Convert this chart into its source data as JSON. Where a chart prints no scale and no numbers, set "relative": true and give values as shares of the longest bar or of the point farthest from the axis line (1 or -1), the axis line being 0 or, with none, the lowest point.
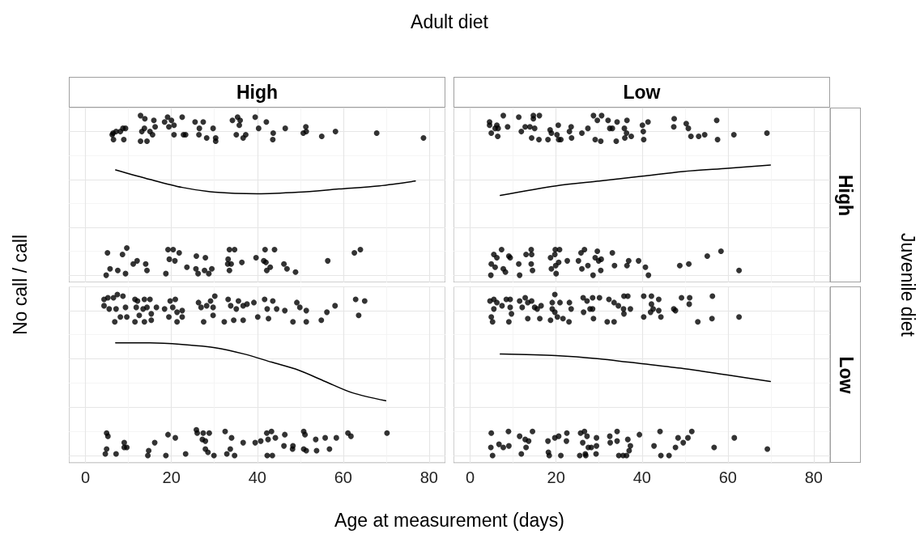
{
  "chart_data": [
    {
      "type": "scatter",
      "title": "High",
      "ylabel": "No call / call",
      "annotations": [
        "Adult diet",
        "Juvenile diet"
      ],
      "relative": true,
      "grid": true,
      "marker": "circle",
      "tick_labels": false,
      "xlim": [
        -3.9,
        83.8
      ],
      "xticks": [
        0,
        20,
        40,
        60,
        80
      ],
      "series": [
        {
          "type": "scatter",
          "color": "#000000",
          "x": [
            6.2,
            6.5,
            7.1,
            8.1,
            8.7,
            9.3,
            8.9,
            6.4,
            12.8,
            13.8,
            15.9,
            18.4,
            19.1,
            20.0,
            20.6,
            19.4,
            13.1,
            13.7,
            15.0,
            16.2,
            15.6,
            14.3,
            12.8,
            20.6,
            22.8,
            23.3,
            22.5,
            25.5,
            27.4,
            26.5,
            26.4,
            28.2,
            29.7,
            30.3,
            30.3,
            34.2,
            35.4,
            36.0,
            35.8,
            35.1,
            36.7,
            37.3,
            39.5,
            40.3,
            42.1,
            43.7,
            43.6,
            46.5,
            51.3,
            50.7,
            51.4,
            55.0,
            58.2,
            67.8,
            78.7,
            5.1,
            5.7,
            4.8,
            7.5,
            8.6,
            9.6,
            9.3,
            11.1,
            12.0,
            14.0,
            14.3,
            18.7,
            19.2,
            20.4,
            21.8,
            19.5,
            20.8,
            23.6,
            25.7,
            25.8,
            26.2,
            27.9,
            27.7,
            28.7,
            29.4,
            33.2,
            33.5,
            34.7,
            33.1,
            33.9,
            33.5,
            36.4,
            39.7,
            41.8,
            44.0,
            41.5,
            42.0,
            43.0,
            42.2,
            46.2,
            46.9,
            48.9,
            56.4,
            62.6,
            64.0
          ],
          "values": [
            0.88,
            0.85,
            0.9,
            0.9,
            0.92,
            0.92,
            0.85,
            0.89,
            1.0,
            0.98,
            0.97,
            0.96,
            0.99,
            0.97,
            0.94,
            0.93,
            0.9,
            0.92,
            0.9,
            0.93,
            0.88,
            0.84,
            0.84,
            0.88,
            0.88,
            0.88,
            0.99,
            0.96,
            0.96,
            0.92,
            0.88,
            0.86,
            0.92,
            0.86,
            0.84,
            0.97,
            0.99,
            0.97,
            0.94,
            0.88,
            0.86,
            0.88,
            0.99,
            0.92,
            0.96,
            0.89,
            0.85,
            0.92,
            0.93,
            0.89,
            0.9,
            0.87,
            0.9,
            0.89,
            0.86,
            0.14,
            0.04,
            0.0,
            0.03,
            0.13,
            0.17,
            0.01,
            0.07,
            0.09,
            0.07,
            0.03,
            0.01,
            0.16,
            0.16,
            0.14,
            0.1,
            0.09,
            0.05,
            0.04,
            0.12,
            0.01,
            0.11,
            0.03,
            0.01,
            0.04,
            0.1,
            0.16,
            0.16,
            0.07,
            0.07,
            0.03,
            0.08,
            0.11,
            0.16,
            0.16,
            0.09,
            0.08,
            0.05,
            0.03,
            0.07,
            0.04,
            0.02,
            0.09,
            0.14,
            0.16
          ]
        },
        {
          "type": "line",
          "color": "#000000",
          "marker": "none",
          "x": [
            7.0,
            15.0,
            22.5,
            30.1,
            40.0,
            49.6,
            59.0,
            68.4,
            76.8
          ],
          "values": [
            0.66,
            0.6,
            0.55,
            0.52,
            0.51,
            0.52,
            0.54,
            0.56,
            0.59
          ]
        }
      ]
    },
    {
      "type": "scatter",
      "title": "Low",
      "y2label": "High",
      "relative": true,
      "grid": true,
      "marker": "circle",
      "tick_labels": false,
      "xlim": [
        -3.9,
        83.8
      ],
      "xticks": [
        0,
        20,
        40,
        60,
        80
      ],
      "series": [
        {
          "type": "scatter",
          "color": "#000000",
          "x": [
            4.5,
            4.5,
            4.9,
            6.4,
            6.2,
            6.5,
            5.8,
            7.7,
            8.7,
            11.3,
            11.9,
            12.8,
            13.9,
            14.7,
            14.7,
            16.1,
            15.0,
            14.3,
            16.0,
            18.1,
            18.6,
            18.9,
            20.5,
            20.2,
            20.6,
            21.1,
            23.5,
            23.1,
            23.6,
            26.0,
            27.4,
            28.7,
            30.6,
            29.6,
            32.1,
            29.1,
            30.4,
            32.5,
            33.1,
            34.2,
            34.0,
            36.5,
            35.9,
            36.0,
            37.5,
            36.4,
            40.1,
            40.3,
            41.4,
            40.4,
            47.5,
            47.4,
            50.3,
            50.8,
            51.4,
            53.2,
            54.6,
            57.4,
            57.6,
            61.4,
            69.1,
            5.5,
            6.2,
            7.3,
            4.9,
            5.8,
            7.7,
            8.2,
            9.0,
            9.3,
            4.8,
            11.3,
            11.5,
            13.0,
            14.2,
            14.3,
            14.2,
            14.5,
            18.7,
            19.8,
            20.8,
            19.7,
            20.6,
            19.9,
            18.9,
            20.0,
            22.6,
            25.2,
            25.8,
            26.6,
            27.4,
            26.0,
            28.6,
            29.6,
            29.1,
            29.9,
            30.5,
            30.4,
            33.1,
            33.6,
            36.5,
            36.9,
            39.2,
            40.8,
            41.5,
            48.8,
            50.9,
            55.2,
            58.4,
            62.6
          ],
          "values": [
            0.96,
            0.94,
            0.89,
            0.87,
            0.94,
            0.92,
            0.92,
            1.0,
            0.93,
            0.99,
            0.9,
            0.93,
            0.93,
            1.0,
            0.98,
            1.0,
            0.92,
            0.86,
            0.85,
            0.85,
            0.91,
            0.89,
            0.94,
            0.88,
            0.85,
            0.85,
            0.93,
            0.9,
            0.86,
            0.89,
            0.92,
            1.0,
            1.0,
            0.97,
            0.97,
            0.85,
            0.84,
            0.92,
            0.92,
            0.96,
            0.84,
            0.97,
            0.92,
            0.86,
            0.87,
            0.89,
            0.94,
            0.9,
            0.96,
            0.85,
            0.98,
            0.93,
            0.95,
            0.92,
            0.87,
            0.87,
            0.88,
            0.97,
            0.85,
            0.88,
            0.89,
            0.13,
            0.11,
            0.16,
            0.07,
            0.05,
            0.04,
            0.02,
            0.12,
            0.11,
            0.0,
            0.07,
            0.0,
            0.13,
            0.16,
            0.13,
            0.07,
            0.03,
            0.11,
            0.16,
            0.16,
            0.13,
            0.08,
            0.06,
            0.04,
            0.01,
            0.09,
            0.09,
            0.14,
            0.16,
            0.06,
            0.04,
            0.0,
            0.15,
            0.11,
            0.09,
            0.1,
            0.03,
            0.14,
            0.06,
            0.06,
            0.09,
            0.09,
            0.05,
            0.0,
            0.06,
            0.07,
            0.12,
            0.15,
            0.03
          ]
        },
        {
          "type": "line",
          "color": "#000000",
          "marker": "none",
          "x": [
            7.0,
            20.0,
            30.1,
            40.0,
            49.6,
            60.0,
            69.9
          ],
          "values": [
            0.5,
            0.56,
            0.59,
            0.62,
            0.65,
            0.67,
            0.69
          ]
        }
      ]
    },
    {
      "type": "scatter",
      "xlabel": "Age at measurement (days)",
      "relative": true,
      "grid": true,
      "marker": "circle",
      "tick_labels": "x",
      "xlim": [
        -3.9,
        83.8
      ],
      "xticks": [
        0,
        20,
        40,
        60,
        80
      ],
      "series": [
        {
          "type": "scatter",
          "color": "#000000",
          "x": [
            4.3,
            5.2,
            6.5,
            7.4,
            8.7,
            4.3,
            5.5,
            7.1,
            8.1,
            6.8,
            9.3,
            9.6,
            11.5,
            12.1,
            13.7,
            15.0,
            11.8,
            12.5,
            13.4,
            14.3,
            15.3,
            16.5,
            11.5,
            13.7,
            15.3,
            18.4,
            19.7,
            20.9,
            20.3,
            21.3,
            22.5,
            19.4,
            21.3,
            22.5,
            26.3,
            26.9,
            28.2,
            29.1,
            30.1,
            29.7,
            27.5,
            29.7,
            32.3,
            33.2,
            33.8,
            35.1,
            35.6,
            36.7,
            37.6,
            39.2,
            34.5,
            36.7,
            40.1,
            41.7,
            43.6,
            42.3,
            44.5,
            42.6,
            46.4,
            48.3,
            49.2,
            49.9,
            51.4,
            51.4,
            54.9,
            56.2,
            58.1,
            62.9,
            65.0,
            63.6,
            4.9,
            5.2,
            4.9,
            4.6,
            7.1,
            9.0,
            9.0,
            9.6,
            14.7,
            14.5,
            16.1,
            18.7,
            19.2,
            20.9,
            23.3,
            25.8,
            26.0,
            27.4,
            28.8,
            27.2,
            27.9,
            27.9,
            28.5,
            29.9,
            32.5,
            34.0,
            33.7,
            32.9,
            34.7,
            36.7,
            39.5,
            40.8,
            42.2,
            43.3,
            42.5,
            44.2,
            42.3,
            43.5,
            46.4,
            46.2,
            48.3,
            48.2,
            50.8,
            51.1,
            50.8,
            51.4,
            53.6,
            53.8,
            55.8,
            56.8,
            58.4,
            61.1,
            61.8,
            70.2
          ],
          "values": [
            0.97,
            0.98,
            0.98,
            1.0,
            0.99,
            0.93,
            0.91,
            0.91,
            0.86,
            0.83,
            0.92,
            0.86,
            0.97,
            0.96,
            0.97,
            0.97,
            0.92,
            0.87,
            0.91,
            0.92,
            0.88,
            0.92,
            0.83,
            0.83,
            0.84,
            0.91,
            0.96,
            0.97,
            0.92,
            0.89,
            0.9,
            0.86,
            0.83,
            0.86,
            0.95,
            0.92,
            0.93,
            0.96,
            0.99,
            0.92,
            0.83,
            0.87,
            0.83,
            0.97,
            0.93,
            0.91,
            0.96,
            0.93,
            0.94,
            0.95,
            0.84,
            0.84,
            0.86,
            0.97,
            0.96,
            0.91,
            0.91,
            0.85,
            0.9,
            0.83,
            0.95,
            0.92,
            0.9,
            0.83,
            0.84,
            0.89,
            0.93,
            0.97,
            0.96,
            0.87,
            0.14,
            0.12,
            0.04,
            0.01,
            0.01,
            0.08,
            0.05,
            0.05,
            0.03,
            0.0,
            0.08,
            0.0,
            0.13,
            0.11,
            0.01,
            0.16,
            0.14,
            0.14,
            0.14,
            0.1,
            0.09,
            0.04,
            0.02,
            0.0,
            0.15,
            0.11,
            0.04,
            0.01,
            0.0,
            0.08,
            0.08,
            0.09,
            0.14,
            0.15,
            0.1,
            0.11,
            0.0,
            0.0,
            0.13,
            0.06,
            0.06,
            0.04,
            0.15,
            0.13,
            0.04,
            0.03,
            0.1,
            0.03,
            0.11,
            0.04,
            0.11,
            0.14,
            0.12,
            0.14
          ]
        },
        {
          "type": "line",
          "color": "#000000",
          "marker": "none",
          "x": [
            7.0,
            15.0,
            22.5,
            30.1,
            37.0,
            43.3,
            49.6,
            55.8,
            62.1,
            69.9
          ],
          "values": [
            0.7,
            0.7,
            0.69,
            0.67,
            0.63,
            0.58,
            0.53,
            0.46,
            0.39,
            0.34
          ]
        }
      ]
    },
    {
      "type": "scatter",
      "y2label": "Low",
      "relative": true,
      "grid": true,
      "marker": "circle",
      "tick_labels": "x",
      "xlim": [
        -3.9,
        83.8
      ],
      "xticks": [
        0,
        20,
        40,
        60,
        80
      ],
      "series": [
        {
          "type": "scatter",
          "color": "#000000",
          "x": [
            4.6,
            5.5,
            6.2,
            7.4,
            8.4,
            9.3,
            9.3,
            5.5,
            4.9,
            5.2,
            9.0,
            9.6,
            11.5,
            12.8,
            13.4,
            14.3,
            12.1,
            15.0,
            15.6,
            16.5,
            13.4,
            16.2,
            19.1,
            19.7,
            20.9,
            19.1,
            19.7,
            18.7,
            20.3,
            21.6,
            23.1,
            23.5,
            23.0,
            26.3,
            27.2,
            28.5,
            30.1,
            26.4,
            27.9,
            28.5,
            28.7,
            31.9,
            33.5,
            32.3,
            33.5,
            34.5,
            35.8,
            36.7,
            35.7,
            37.3,
            35.8,
            40.4,
            42.2,
            43.9,
            42.2,
            42.6,
            43.9,
            42.0,
            40.4,
            44.4,
            47.4,
            47.8,
            49.2,
            51.1,
            51.0,
            53.0,
            56.4,
            56.3,
            62.6,
            4.9,
            4.8,
            5.2,
            6.7,
            7.7,
            9.0,
            8.9,
            11.5,
            12.8,
            13.6,
            13.0,
            11.9,
            14.5,
            18.1,
            19.7,
            20.6,
            22.5,
            22.4,
            18.2,
            18.4,
            21.1,
            25.7,
            26.6,
            27.2,
            26.2,
            27.5,
            28.2,
            29.4,
            29.4,
            25.5,
            26.8,
            26.9,
            29.3,
            32.5,
            32.6,
            34.2,
            34.2,
            36.7,
            37.3,
            37.0,
            36.4,
            34.6,
            35.6,
            39.4,
            42.8,
            44.2,
            44.4,
            46.3,
            47.8,
            48.4,
            49.6,
            50.7,
            51.6,
            56.8,
            61.5,
            69.2
          ],
          "values": [
            0.96,
            0.97,
            0.95,
            0.93,
            0.97,
            0.97,
            0.92,
            0.91,
            0.86,
            0.83,
            0.83,
            0.88,
            0.96,
            0.98,
            0.95,
            0.96,
            0.92,
            0.92,
            0.91,
            0.93,
            0.85,
            0.85,
            0.95,
            1.0,
            0.95,
            0.91,
            0.89,
            0.84,
            0.86,
            0.85,
            0.95,
            0.91,
            0.83,
            0.98,
            0.96,
            0.98,
            0.98,
            0.89,
            0.91,
            0.91,
            0.85,
            0.83,
            0.83,
            0.97,
            0.95,
            0.93,
            0.99,
            0.99,
            0.91,
            0.91,
            0.88,
            0.99,
            0.99,
            0.97,
            0.94,
            0.91,
            0.9,
            0.89,
            0.86,
            0.86,
            0.91,
            0.9,
            0.98,
            0.98,
            0.94,
            0.83,
            0.99,
            0.85,
            0.86,
            0.14,
            0.05,
            0.0,
            0.07,
            0.05,
            0.06,
            0.15,
            0.12,
            0.1,
            0.09,
            0.05,
            0.01,
            0.15,
            0.09,
            0.11,
            0.12,
            0.14,
            0.09,
            0.02,
            0.0,
            0.0,
            0.14,
            0.15,
            0.12,
            0.08,
            0.05,
            0.05,
            0.11,
            0.06,
            0.0,
            0.01,
            0.0,
            0.01,
            0.12,
            0.08,
            0.15,
            0.09,
            0.1,
            0.06,
            0.03,
            0.0,
            0.0,
            0.0,
            0.13,
            0.06,
            0.15,
            0.0,
            0.0,
            0.05,
            0.11,
            0.08,
            0.11,
            0.15,
            0.05,
            0.11,
            0.04
          ]
        },
        {
          "type": "line",
          "color": "#000000",
          "marker": "none",
          "x": [
            7.0,
            20.0,
            30.1,
            40.0,
            49.6,
            60.0,
            69.9
          ],
          "values": [
            0.63,
            0.62,
            0.6,
            0.57,
            0.54,
            0.5,
            0.46
          ]
        }
      ]
    }
  ]
}
